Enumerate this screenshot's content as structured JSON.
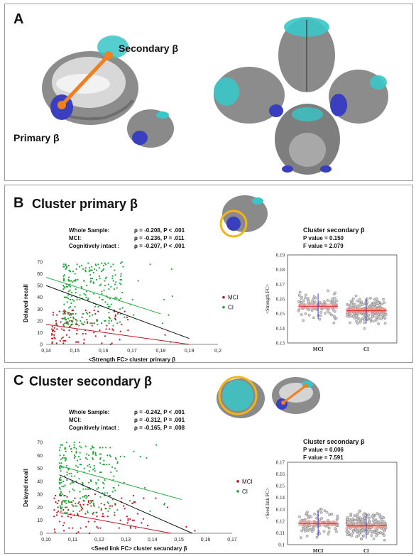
{
  "panelA": {
    "label": "A",
    "secondary": "Secondary β",
    "primary": "Primary β"
  },
  "panelB": {
    "label": "B",
    "title": "Cluster primary β",
    "stats": [
      {
        "label": "Whole Sample:",
        "value": "ρ = -0.208, P < .001"
      },
      {
        "label": "MCI:",
        "value": "ρ = -0.236, P = .011"
      },
      {
        "label": "Cognitively intact :",
        "value": "ρ = -0.207, P < .001"
      }
    ],
    "box_title": "Cluster secondary β",
    "box_p": "P value = 0.150",
    "box_f": "F value = 2.079"
  },
  "panelC": {
    "label": "C",
    "title": "Cluster secondary β",
    "stats": [
      {
        "label": "Whole Sample:",
        "value": "ρ = -0.242, P < .001"
      },
      {
        "label": "MCI:",
        "value": "ρ = -0.312, P = .001"
      },
      {
        "label": "Cognitively intact :",
        "value": "ρ = -0.165, P = .008"
      }
    ],
    "box_title": "Cluster secondary β",
    "box_p": "P value = 0.006",
    "box_f": "F value = 7.591"
  },
  "colors": {
    "mci": "#c0141c",
    "ci": "#22a83a",
    "whole": "#111111",
    "cyan": "#38c6c8",
    "blue": "#3a3fc0",
    "orange": "#f07f1e",
    "brain": "#8a8a8a"
  },
  "chart_data": [
    {
      "id": "B-scatter",
      "type": "scatter",
      "xlabel": "<Strength FC> cluster primary β",
      "ylabel": "Delayed recall",
      "xlim": [
        0.14,
        0.2
      ],
      "ylim": [
        0,
        70
      ],
      "xticks": [
        "0,14",
        "0,15",
        "0,16",
        "0,17",
        "0,18",
        "0,19",
        "0,2"
      ],
      "yticks": [
        "0",
        "10",
        "20",
        "30",
        "40",
        "50",
        "60",
        "70"
      ],
      "legend": [
        "MCI",
        "CI"
      ],
      "legend_position": "right",
      "fit_lines": [
        {
          "name": "MCI",
          "x": [
            0.14,
            0.19
          ],
          "y": [
            17,
            0
          ]
        },
        {
          "name": "CI",
          "x": [
            0.14,
            0.18
          ],
          "y": [
            57,
            26
          ]
        },
        {
          "name": "Whole",
          "x": [
            0.14,
            0.19
          ],
          "y": [
            50,
            5
          ]
        }
      ],
      "series": [
        {
          "name": "MCI",
          "n": 110,
          "x_range": [
            0.142,
            0.192
          ],
          "y_range": [
            0,
            30
          ]
        },
        {
          "name": "CI",
          "n": 260,
          "x_range": [
            0.146,
            0.185
          ],
          "y_range": [
            15,
            70
          ]
        }
      ]
    },
    {
      "id": "B-box",
      "type": "scatter",
      "title": "Cluster secondary β",
      "ylabel": "<Strength FC>",
      "categories": [
        "MCI",
        "CI"
      ],
      "ylim": [
        0.13,
        0.19
      ],
      "yticks": [
        "0.13",
        "0.14",
        "0.15",
        "0.16",
        "0.17",
        "0.18",
        "0.19"
      ],
      "means": [
        0.155,
        0.152
      ]
    },
    {
      "id": "C-scatter",
      "type": "scatter",
      "xlabel": "<Seed link FC> cluster secundary β",
      "ylabel": "Delayed recall",
      "xlim": [
        0.1,
        0.17
      ],
      "ylim": [
        0,
        70
      ],
      "xticks": [
        "0,10",
        "0,11",
        "0,12",
        "0,13",
        "0,14",
        "0,15",
        "0,16",
        "0,17"
      ],
      "yticks": [
        "0",
        "10",
        "20",
        "30",
        "40",
        "50",
        "60",
        "70"
      ],
      "legend": [
        "MCI",
        "CI"
      ],
      "legend_position": "right",
      "fit_lines": [
        {
          "name": "MCI",
          "x": [
            0.105,
            0.147
          ],
          "y": [
            16,
            0
          ]
        },
        {
          "name": "CI",
          "x": [
            0.105,
            0.151
          ],
          "y": [
            52,
            26
          ]
        },
        {
          "name": "Whole",
          "x": [
            0.105,
            0.155
          ],
          "y": [
            45,
            0
          ]
        }
      ],
      "series": [
        {
          "name": "MCI",
          "n": 110,
          "x_range": [
            0.103,
            0.168
          ],
          "y_range": [
            0,
            32
          ]
        },
        {
          "name": "CI",
          "n": 260,
          "x_range": [
            0.105,
            0.145
          ],
          "y_range": [
            15,
            70
          ]
        }
      ]
    },
    {
      "id": "C-box",
      "type": "scatter",
      "title": "Cluster secondary β",
      "ylabel": "<Seed link FC>",
      "categories": [
        "MCI",
        "CI"
      ],
      "ylim": [
        0.1,
        0.17
      ],
      "yticks": [
        "0.1",
        "0.11",
        "0.12",
        "0.13",
        "0.14",
        "0.15",
        "0.16",
        "0.17"
      ],
      "means": [
        0.118,
        0.116
      ]
    }
  ]
}
